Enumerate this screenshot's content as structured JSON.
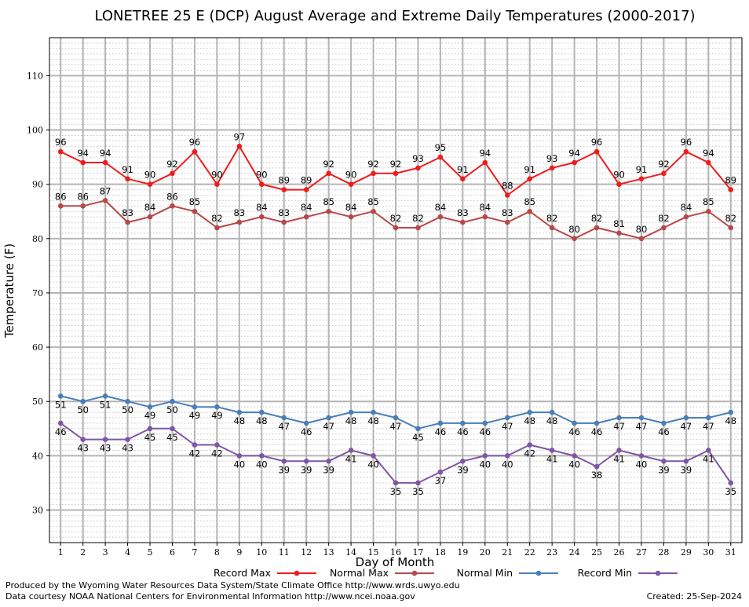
{
  "chart_data": {
    "type": "line",
    "title": "LONETREE 25 E (DCP) August Average and Extreme Daily Temperatures (2000-2017)",
    "xlabel": "Day of Month",
    "ylabel": "Temperature (F)",
    "xlim": [
      0.5,
      31.5
    ],
    "ylim": [
      24,
      117
    ],
    "yticks": [
      30,
      40,
      50,
      60,
      70,
      80,
      90,
      100,
      110
    ],
    "categories": [
      "1",
      "2",
      "3",
      "4",
      "5",
      "6",
      "7",
      "8",
      "9",
      "10",
      "11",
      "12",
      "13",
      "14",
      "15",
      "16",
      "17",
      "18",
      "19",
      "20",
      "21",
      "22",
      "23",
      "24",
      "25",
      "26",
      "27",
      "28",
      "29",
      "30",
      "31"
    ],
    "grid": true,
    "legend_position": "bottom",
    "series": [
      {
        "name": "Record Max",
        "color": "#ee1c1c",
        "label_pos": "above",
        "values": [
          96,
          94,
          94,
          91,
          90,
          92,
          96,
          90,
          97,
          90,
          89,
          89,
          92,
          90,
          92,
          92,
          93,
          95,
          91,
          94,
          88,
          91,
          93,
          94,
          96,
          90,
          91,
          92,
          96,
          94,
          89
        ]
      },
      {
        "name": "Normal Max",
        "color": "#b84848",
        "label_pos": "above",
        "values": [
          86,
          86,
          87,
          83,
          84,
          86,
          85,
          82,
          83,
          84,
          83,
          84,
          85,
          84,
          85,
          82,
          82,
          84,
          83,
          84,
          83,
          85,
          82,
          80,
          82,
          81,
          80,
          82,
          84,
          85,
          82
        ]
      },
      {
        "name": "Normal Min",
        "color": "#4a7fb8",
        "label_pos": "below",
        "values": [
          51,
          50,
          51,
          50,
          49,
          50,
          49,
          49,
          48,
          48,
          47,
          46,
          47,
          48,
          48,
          47,
          45,
          46,
          46,
          46,
          47,
          48,
          48,
          46,
          46,
          47,
          47,
          46,
          47,
          47,
          48
        ]
      },
      {
        "name": "Record Min",
        "color": "#7f56a4",
        "label_pos": "below",
        "values": [
          46,
          43,
          43,
          43,
          45,
          45,
          42,
          42,
          40,
          40,
          39,
          39,
          39,
          41,
          40,
          35,
          35,
          37,
          39,
          40,
          40,
          42,
          41,
          40,
          38,
          41,
          40,
          39,
          39,
          41,
          35
        ]
      }
    ]
  },
  "footer": {
    "produced_by": "Produced by the Wyoming Water Resources Data System/State Climate Office http://www.wrds.uwyo.edu",
    "courtesy": "Data courtesy NOAA National Centers for Environmental Information http://www.ncei.noaa.gov",
    "created": "Created: 25-Sep-2024"
  }
}
